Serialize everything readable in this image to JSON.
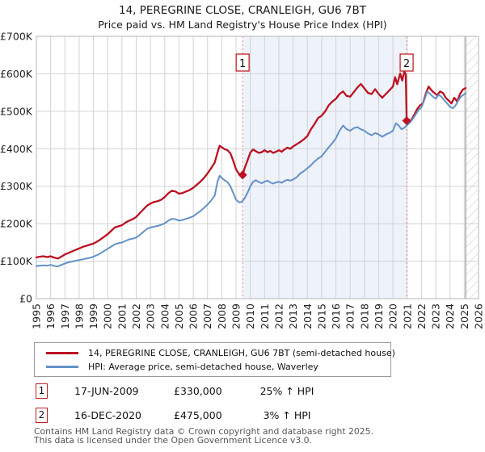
{
  "title": "14, PEREGRINE CLOSE, CRANLEIGH, GU6 7BT",
  "subtitle": "Price paid vs. HM Land Registry's House Price Index (HPI)",
  "colors": {
    "price_line": "#bb1121",
    "hpi_line": "#6391c8",
    "grid": "#d2d2d2",
    "plot_border": "#b5b5b5",
    "sale_dashed_line": "#ec8090",
    "shaded_span_fill": "#eef2fb",
    "badge_border": "#c22126",
    "hatch": "#c8c8c8",
    "footer_text": "#555555"
  },
  "chart_data": {
    "type": "line",
    "title": "Price paid vs. HM Land Registry's House Price Index (HPI)",
    "xlabel": "",
    "ylabel": "",
    "x_range": [
      1995,
      2026
    ],
    "y_range_gbp": [
      0,
      700000
    ],
    "values_unit": "GBP_thousands",
    "grid": true,
    "y_ticks": [
      {
        "value": 0,
        "label": "£0"
      },
      {
        "value": 100,
        "label": "£100K"
      },
      {
        "value": 200,
        "label": "£200K"
      },
      {
        "value": 300,
        "label": "£300K"
      },
      {
        "value": 400,
        "label": "£400K"
      },
      {
        "value": 500,
        "label": "£500K"
      },
      {
        "value": 600,
        "label": "£600K"
      },
      {
        "value": 700,
        "label": "£700K"
      }
    ],
    "x_ticks": [
      "1995",
      "1996",
      "1997",
      "1998",
      "1999",
      "2000",
      "2001",
      "2002",
      "2003",
      "2004",
      "2005",
      "2006",
      "2007",
      "2008",
      "2009",
      "2010",
      "2011",
      "2012",
      "2013",
      "2014",
      "2015",
      "2016",
      "2017",
      "2018",
      "2019",
      "2020",
      "2021",
      "2022",
      "2023",
      "2024",
      "2025",
      "2026"
    ],
    "shaded_span": {
      "from": 2009.46,
      "to": 2020.96
    },
    "hatched_future_span": {
      "from": 2025.1,
      "to": 2026
    },
    "series": [
      {
        "name": "14, PEREGRINE CLOSE, CRANLEIGH, GU6 7BT (semi-detached house)",
        "color": "#bb1121",
        "points": [
          [
            1995.0,
            110
          ],
          [
            1995.25,
            112
          ],
          [
            1995.5,
            113
          ],
          [
            1995.75,
            111
          ],
          [
            1996.0,
            113
          ],
          [
            1996.3,
            109
          ],
          [
            1996.5,
            107
          ],
          [
            1996.75,
            112
          ],
          [
            1997.0,
            118
          ],
          [
            1997.25,
            122
          ],
          [
            1997.5,
            126
          ],
          [
            1997.75,
            130
          ],
          [
            1998.0,
            134
          ],
          [
            1998.25,
            138
          ],
          [
            1998.5,
            141
          ],
          [
            1998.75,
            144
          ],
          [
            1999.0,
            147
          ],
          [
            1999.25,
            152
          ],
          [
            1999.5,
            158
          ],
          [
            1999.75,
            165
          ],
          [
            2000.0,
            172
          ],
          [
            2000.25,
            181
          ],
          [
            2000.5,
            190
          ],
          [
            2000.75,
            193
          ],
          [
            2001.0,
            196
          ],
          [
            2001.25,
            203
          ],
          [
            2001.5,
            208
          ],
          [
            2001.75,
            212
          ],
          [
            2002.0,
            218
          ],
          [
            2002.25,
            228
          ],
          [
            2002.5,
            238
          ],
          [
            2002.75,
            248
          ],
          [
            2003.0,
            254
          ],
          [
            2003.25,
            258
          ],
          [
            2003.5,
            260
          ],
          [
            2003.75,
            264
          ],
          [
            2004.0,
            271
          ],
          [
            2004.25,
            281
          ],
          [
            2004.5,
            288
          ],
          [
            2004.75,
            286
          ],
          [
            2005.0,
            280
          ],
          [
            2005.25,
            282
          ],
          [
            2005.5,
            286
          ],
          [
            2005.75,
            290
          ],
          [
            2006.0,
            296
          ],
          [
            2006.25,
            304
          ],
          [
            2006.5,
            312
          ],
          [
            2006.75,
            322
          ],
          [
            2007.0,
            334
          ],
          [
            2007.25,
            348
          ],
          [
            2007.5,
            363
          ],
          [
            2007.7,
            390
          ],
          [
            2007.85,
            408
          ],
          [
            2008.0,
            404
          ],
          [
            2008.2,
            399
          ],
          [
            2008.4,
            396
          ],
          [
            2008.6,
            388
          ],
          [
            2008.8,
            368
          ],
          [
            2009.0,
            345
          ],
          [
            2009.2,
            333
          ],
          [
            2009.46,
            330
          ],
          [
            2009.6,
            348
          ],
          [
            2009.8,
            368
          ],
          [
            2010.0,
            390
          ],
          [
            2010.2,
            398
          ],
          [
            2010.4,
            393
          ],
          [
            2010.6,
            389
          ],
          [
            2010.8,
            391
          ],
          [
            2011.0,
            396
          ],
          [
            2011.2,
            391
          ],
          [
            2011.4,
            394
          ],
          [
            2011.6,
            389
          ],
          [
            2011.8,
            392
          ],
          [
            2012.0,
            396
          ],
          [
            2012.2,
            392
          ],
          [
            2012.4,
            398
          ],
          [
            2012.6,
            403
          ],
          [
            2012.8,
            400
          ],
          [
            2013.0,
            406
          ],
          [
            2013.25,
            412
          ],
          [
            2013.5,
            418
          ],
          [
            2013.75,
            425
          ],
          [
            2014.0,
            434
          ],
          [
            2014.25,
            452
          ],
          [
            2014.5,
            466
          ],
          [
            2014.75,
            482
          ],
          [
            2015.0,
            488
          ],
          [
            2015.25,
            500
          ],
          [
            2015.5,
            516
          ],
          [
            2015.75,
            526
          ],
          [
            2016.0,
            533
          ],
          [
            2016.25,
            546
          ],
          [
            2016.5,
            553
          ],
          [
            2016.75,
            541
          ],
          [
            2017.0,
            539
          ],
          [
            2017.25,
            551
          ],
          [
            2017.5,
            563
          ],
          [
            2017.75,
            573
          ],
          [
            2018.0,
            561
          ],
          [
            2018.25,
            549
          ],
          [
            2018.5,
            546
          ],
          [
            2018.75,
            559
          ],
          [
            2019.0,
            546
          ],
          [
            2019.25,
            536
          ],
          [
            2019.5,
            546
          ],
          [
            2019.75,
            556
          ],
          [
            2020.0,
            566
          ],
          [
            2020.15,
            591
          ],
          [
            2020.3,
            572
          ],
          [
            2020.5,
            601
          ],
          [
            2020.65,
            582
          ],
          [
            2020.8,
            606
          ],
          [
            2020.9,
            597
          ],
          [
            2020.96,
            475
          ],
          [
            2021.1,
            471
          ],
          [
            2021.3,
            478
          ],
          [
            2021.5,
            491
          ],
          [
            2021.7,
            506
          ],
          [
            2021.9,
            516
          ],
          [
            2022.1,
            521
          ],
          [
            2022.3,
            546
          ],
          [
            2022.5,
            566
          ],
          [
            2022.7,
            556
          ],
          [
            2022.9,
            549
          ],
          [
            2023.1,
            543
          ],
          [
            2023.3,
            553
          ],
          [
            2023.5,
            549
          ],
          [
            2023.7,
            536
          ],
          [
            2023.9,
            529
          ],
          [
            2024.1,
            521
          ],
          [
            2024.3,
            536
          ],
          [
            2024.5,
            526
          ],
          [
            2024.7,
            546
          ],
          [
            2024.9,
            558
          ],
          [
            2025.1,
            562
          ]
        ]
      },
      {
        "name": "HPI: Average price, semi-detached house, Waverley",
        "color": "#6391c8",
        "points": [
          [
            1995.0,
            87
          ],
          [
            1995.25,
            88
          ],
          [
            1995.5,
            89
          ],
          [
            1995.75,
            88
          ],
          [
            1996.0,
            90
          ],
          [
            1996.3,
            87
          ],
          [
            1996.5,
            86
          ],
          [
            1996.75,
            90
          ],
          [
            1997.0,
            94
          ],
          [
            1997.25,
            97
          ],
          [
            1997.5,
            99
          ],
          [
            1997.75,
            101
          ],
          [
            1998.0,
            103
          ],
          [
            1998.25,
            105
          ],
          [
            1998.5,
            107
          ],
          [
            1998.75,
            109
          ],
          [
            1999.0,
            112
          ],
          [
            1999.25,
            116
          ],
          [
            1999.5,
            121
          ],
          [
            1999.75,
            127
          ],
          [
            2000.0,
            133
          ],
          [
            2000.25,
            139
          ],
          [
            2000.5,
            145
          ],
          [
            2000.75,
            148
          ],
          [
            2001.0,
            150
          ],
          [
            2001.25,
            154
          ],
          [
            2001.5,
            158
          ],
          [
            2001.75,
            160
          ],
          [
            2002.0,
            163
          ],
          [
            2002.25,
            170
          ],
          [
            2002.5,
            178
          ],
          [
            2002.75,
            186
          ],
          [
            2003.0,
            190
          ],
          [
            2003.25,
            192
          ],
          [
            2003.5,
            194
          ],
          [
            2003.75,
            197
          ],
          [
            2004.0,
            201
          ],
          [
            2004.25,
            208
          ],
          [
            2004.5,
            213
          ],
          [
            2004.75,
            212
          ],
          [
            2005.0,
            208
          ],
          [
            2005.25,
            210
          ],
          [
            2005.5,
            213
          ],
          [
            2005.75,
            216
          ],
          [
            2006.0,
            220
          ],
          [
            2006.25,
            227
          ],
          [
            2006.5,
            234
          ],
          [
            2006.75,
            242
          ],
          [
            2007.0,
            251
          ],
          [
            2007.25,
            262
          ],
          [
            2007.5,
            275
          ],
          [
            2007.7,
            312
          ],
          [
            2007.85,
            328
          ],
          [
            2008.0,
            322
          ],
          [
            2008.2,
            316
          ],
          [
            2008.4,
            311
          ],
          [
            2008.6,
            300
          ],
          [
            2008.8,
            282
          ],
          [
            2009.0,
            264
          ],
          [
            2009.2,
            257
          ],
          [
            2009.4,
            258
          ],
          [
            2009.6,
            268
          ],
          [
            2009.8,
            282
          ],
          [
            2010.0,
            300
          ],
          [
            2010.2,
            312
          ],
          [
            2010.4,
            316
          ],
          [
            2010.6,
            311
          ],
          [
            2010.8,
            308
          ],
          [
            2011.0,
            312
          ],
          [
            2011.2,
            315
          ],
          [
            2011.4,
            310
          ],
          [
            2011.6,
            307
          ],
          [
            2011.8,
            310
          ],
          [
            2012.0,
            312
          ],
          [
            2012.2,
            309
          ],
          [
            2012.4,
            314
          ],
          [
            2012.6,
            317
          ],
          [
            2012.8,
            315
          ],
          [
            2013.0,
            318
          ],
          [
            2013.25,
            324
          ],
          [
            2013.5,
            334
          ],
          [
            2013.75,
            340
          ],
          [
            2014.0,
            348
          ],
          [
            2014.25,
            356
          ],
          [
            2014.5,
            366
          ],
          [
            2014.75,
            374
          ],
          [
            2015.0,
            380
          ],
          [
            2015.25,
            392
          ],
          [
            2015.5,
            404
          ],
          [
            2015.75,
            415
          ],
          [
            2016.0,
            428
          ],
          [
            2016.25,
            448
          ],
          [
            2016.5,
            462
          ],
          [
            2016.75,
            452
          ],
          [
            2017.0,
            448
          ],
          [
            2017.25,
            455
          ],
          [
            2017.5,
            458
          ],
          [
            2017.75,
            452
          ],
          [
            2018.0,
            448
          ],
          [
            2018.25,
            441
          ],
          [
            2018.5,
            436
          ],
          [
            2018.75,
            442
          ],
          [
            2019.0,
            438
          ],
          [
            2019.25,
            432
          ],
          [
            2019.5,
            438
          ],
          [
            2019.75,
            442
          ],
          [
            2020.0,
            448
          ],
          [
            2020.2,
            468
          ],
          [
            2020.4,
            462
          ],
          [
            2020.6,
            452
          ],
          [
            2020.8,
            456
          ],
          [
            2020.96,
            462
          ],
          [
            2021.2,
            470
          ],
          [
            2021.4,
            480
          ],
          [
            2021.6,
            492
          ],
          [
            2021.8,
            504
          ],
          [
            2022.0,
            510
          ],
          [
            2022.2,
            530
          ],
          [
            2022.4,
            552
          ],
          [
            2022.6,
            547
          ],
          [
            2022.8,
            539
          ],
          [
            2023.0,
            534
          ],
          [
            2023.2,
            544
          ],
          [
            2023.4,
            539
          ],
          [
            2023.6,
            529
          ],
          [
            2023.8,
            521
          ],
          [
            2024.0,
            512
          ],
          [
            2024.2,
            508
          ],
          [
            2024.4,
            516
          ],
          [
            2024.6,
            530
          ],
          [
            2024.8,
            540
          ],
          [
            2025.1,
            548
          ]
        ]
      }
    ],
    "sale_markers": [
      {
        "label": "1",
        "x": 2009.46,
        "price": 330,
        "date": "17-JUN-2009"
      },
      {
        "label": "2",
        "x": 2020.96,
        "price": 475,
        "date": "16-DEC-2020"
      }
    ]
  },
  "legend": {
    "items": [
      {
        "label": "14, PEREGRINE CLOSE, CRANLEIGH, GU6 7BT (semi-detached house)",
        "color": "#bb1121"
      },
      {
        "label": "HPI: Average price, semi-detached house, Waverley",
        "color": "#6391c8"
      }
    ]
  },
  "annotations": [
    {
      "num": "1",
      "date": "17-JUN-2009",
      "price": "£330,000",
      "hpi_diff": "25% ↑ HPI"
    },
    {
      "num": "2",
      "date": "16-DEC-2020",
      "price": "£475,000",
      "hpi_diff": "3% ↑ HPI"
    }
  ],
  "footer": {
    "line1": "Contains HM Land Registry data © Crown copyright and database right 2025.",
    "line2": "This data is licensed under the Open Government Licence v3.0."
  }
}
